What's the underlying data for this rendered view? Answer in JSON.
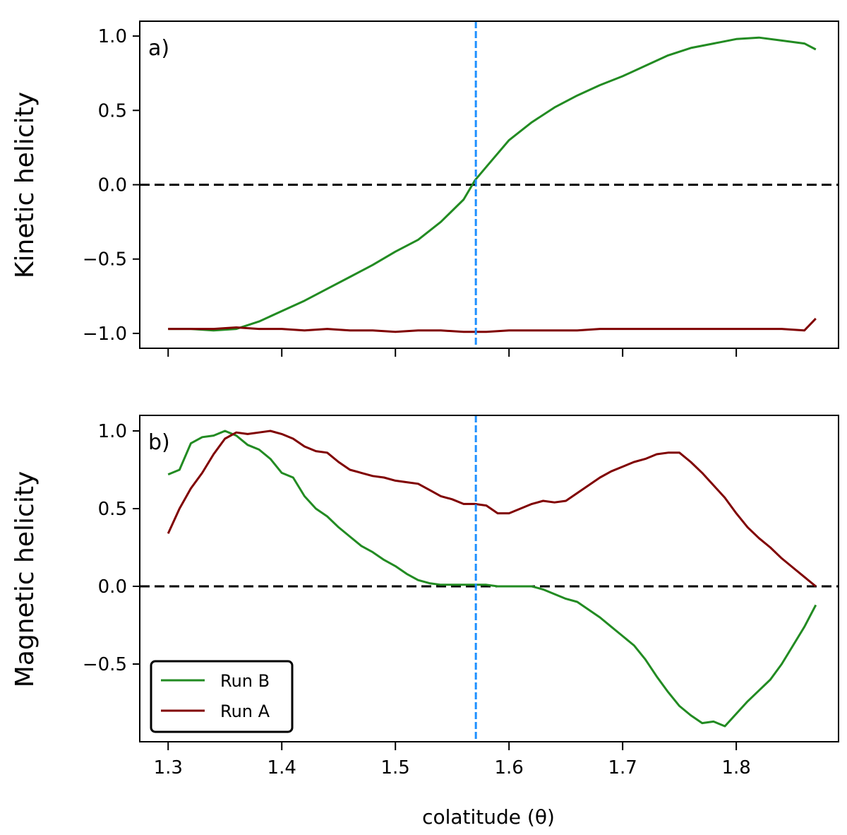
{
  "chart_data": {
    "type": "line",
    "xlabel": "colatitude (θ)",
    "xlim": [
      1.275,
      1.89
    ],
    "x_ticks": [
      1.3,
      1.4,
      1.5,
      1.6,
      1.7,
      1.8
    ],
    "x_tick_labels": [
      "1.3",
      "1.4",
      "1.5",
      "1.6",
      "1.7",
      "1.8"
    ],
    "equator_marker": 1.5708,
    "colors": {
      "run_b": "#228b22",
      "run_a": "#800000",
      "equator": "#1e90ff",
      "zero_line": "#000000"
    },
    "legend": {
      "placement": "lower-left",
      "entries": [
        "Run B",
        "Run A"
      ]
    },
    "panels": [
      {
        "panel_label": "a)",
        "ylabel": "Kinetic helicity",
        "ylim": [
          -1.1,
          1.1
        ],
        "y_ticks": [
          1.0,
          0.5,
          0.0,
          -0.5,
          -1.0
        ],
        "y_tick_labels": [
          "1.0",
          "0.5",
          "0.0",
          "−0.5",
          "−1.0"
        ],
        "series": [
          {
            "name": "Run B",
            "x": [
              1.3,
              1.32,
              1.34,
              1.36,
              1.38,
              1.4,
              1.42,
              1.44,
              1.46,
              1.48,
              1.5,
              1.52,
              1.54,
              1.56,
              1.57,
              1.58,
              1.6,
              1.62,
              1.64,
              1.66,
              1.68,
              1.7,
              1.72,
              1.74,
              1.76,
              1.78,
              1.8,
              1.82,
              1.84,
              1.86,
              1.87
            ],
            "values": [
              -0.97,
              -0.97,
              -0.98,
              -0.97,
              -0.92,
              -0.85,
              -0.78,
              -0.7,
              -0.62,
              -0.54,
              -0.45,
              -0.37,
              -0.25,
              -0.1,
              0.03,
              0.12,
              0.3,
              0.42,
              0.52,
              0.6,
              0.67,
              0.73,
              0.8,
              0.87,
              0.92,
              0.95,
              0.98,
              0.99,
              0.97,
              0.95,
              0.91
            ]
          },
          {
            "name": "Run A",
            "x": [
              1.3,
              1.32,
              1.34,
              1.36,
              1.38,
              1.4,
              1.42,
              1.44,
              1.46,
              1.48,
              1.5,
              1.52,
              1.54,
              1.56,
              1.58,
              1.6,
              1.62,
              1.64,
              1.66,
              1.68,
              1.7,
              1.72,
              1.74,
              1.76,
              1.78,
              1.8,
              1.82,
              1.84,
              1.86,
              1.87
            ],
            "values": [
              -0.97,
              -0.97,
              -0.97,
              -0.96,
              -0.97,
              -0.97,
              -0.98,
              -0.97,
              -0.98,
              -0.98,
              -0.99,
              -0.98,
              -0.98,
              -0.99,
              -0.99,
              -0.98,
              -0.98,
              -0.98,
              -0.98,
              -0.97,
              -0.97,
              -0.97,
              -0.97,
              -0.97,
              -0.97,
              -0.97,
              -0.97,
              -0.97,
              -0.98,
              -0.9
            ]
          }
        ]
      },
      {
        "panel_label": "b)",
        "ylabel": "Magnetic helicity",
        "ylim": [
          -1.0,
          1.1
        ],
        "y_ticks": [
          1.0,
          0.5,
          0.0,
          -0.5
        ],
        "y_tick_labels": [
          "1.0",
          "0.5",
          "0.0",
          "−0.5"
        ],
        "series": [
          {
            "name": "Run B",
            "x": [
              1.3,
              1.31,
              1.32,
              1.33,
              1.34,
              1.35,
              1.36,
              1.37,
              1.38,
              1.39,
              1.4,
              1.41,
              1.42,
              1.43,
              1.44,
              1.45,
              1.46,
              1.47,
              1.48,
              1.49,
              1.5,
              1.51,
              1.52,
              1.53,
              1.54,
              1.55,
              1.56,
              1.57,
              1.58,
              1.59,
              1.6,
              1.61,
              1.62,
              1.63,
              1.64,
              1.65,
              1.66,
              1.67,
              1.68,
              1.69,
              1.7,
              1.71,
              1.72,
              1.73,
              1.74,
              1.75,
              1.76,
              1.77,
              1.78,
              1.79,
              1.8,
              1.81,
              1.82,
              1.83,
              1.84,
              1.85,
              1.86,
              1.87
            ],
            "values": [
              0.72,
              0.75,
              0.92,
              0.96,
              0.97,
              1.0,
              0.97,
              0.91,
              0.88,
              0.82,
              0.73,
              0.7,
              0.58,
              0.5,
              0.45,
              0.38,
              0.32,
              0.26,
              0.22,
              0.17,
              0.13,
              0.08,
              0.04,
              0.02,
              0.01,
              0.01,
              0.01,
              0.01,
              0.01,
              0.0,
              0.0,
              0.0,
              0.0,
              -0.02,
              -0.05,
              -0.08,
              -0.1,
              -0.15,
              -0.2,
              -0.26,
              -0.32,
              -0.38,
              -0.47,
              -0.58,
              -0.68,
              -0.77,
              -0.83,
              -0.88,
              -0.87,
              -0.9,
              -0.82,
              -0.74,
              -0.67,
              -0.6,
              -0.5,
              -0.38,
              -0.26,
              -0.12
            ]
          },
          {
            "name": "Run A",
            "x": [
              1.3,
              1.31,
              1.32,
              1.33,
              1.34,
              1.35,
              1.36,
              1.37,
              1.38,
              1.39,
              1.4,
              1.41,
              1.42,
              1.43,
              1.44,
              1.45,
              1.46,
              1.47,
              1.48,
              1.49,
              1.5,
              1.51,
              1.52,
              1.53,
              1.54,
              1.55,
              1.56,
              1.57,
              1.58,
              1.59,
              1.6,
              1.61,
              1.62,
              1.63,
              1.64,
              1.65,
              1.66,
              1.67,
              1.68,
              1.69,
              1.7,
              1.71,
              1.72,
              1.73,
              1.74,
              1.75,
              1.76,
              1.77,
              1.78,
              1.79,
              1.8,
              1.81,
              1.82,
              1.83,
              1.84,
              1.85,
              1.86,
              1.87
            ],
            "values": [
              0.34,
              0.5,
              0.63,
              0.73,
              0.85,
              0.95,
              0.99,
              0.98,
              0.99,
              1.0,
              0.98,
              0.95,
              0.9,
              0.87,
              0.86,
              0.8,
              0.75,
              0.73,
              0.71,
              0.7,
              0.68,
              0.67,
              0.66,
              0.62,
              0.58,
              0.56,
              0.53,
              0.53,
              0.52,
              0.47,
              0.47,
              0.5,
              0.53,
              0.55,
              0.54,
              0.55,
              0.6,
              0.65,
              0.7,
              0.74,
              0.77,
              0.8,
              0.82,
              0.85,
              0.86,
              0.86,
              0.8,
              0.73,
              0.65,
              0.57,
              0.47,
              0.38,
              0.31,
              0.25,
              0.18,
              0.12,
              0.06,
              0.0
            ]
          }
        ]
      }
    ]
  }
}
